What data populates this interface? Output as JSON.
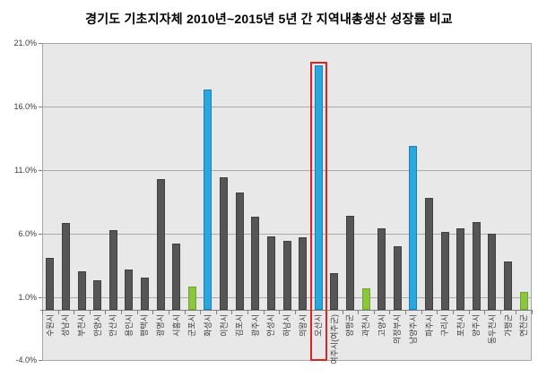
{
  "chart_data": {
    "type": "bar",
    "title": "경기도 기초지자체 2010년~2015년 5년 간 지역내총생산 성장률 비교",
    "categories": [
      "수원시",
      "성남시",
      "부천시",
      "안양시",
      "안산시",
      "용인시",
      "평택시",
      "광명시",
      "시흥시",
      "군포시",
      "화성시",
      "이천시",
      "김포시",
      "광주시",
      "안성시",
      "하남시",
      "의왕시",
      "오산시",
      "여주시(여주군)",
      "양평군",
      "과천시",
      "고양시",
      "의정부시",
      "남양주시",
      "파주시",
      "구리시",
      "포천시",
      "양주시",
      "동두천시",
      "가평군",
      "연천군"
    ],
    "values": [
      4.1,
      6.8,
      3.0,
      2.3,
      6.3,
      3.2,
      2.5,
      10.3,
      5.2,
      1.8,
      17.3,
      10.4,
      9.2,
      7.3,
      5.8,
      5.4,
      5.7,
      19.2,
      2.9,
      7.4,
      1.7,
      6.4,
      5.0,
      12.9,
      8.8,
      6.1,
      6.4,
      6.9,
      6.0,
      3.8,
      1.4
    ],
    "color_keys": [
      "gray",
      "gray",
      "gray",
      "gray",
      "gray",
      "gray",
      "gray",
      "gray",
      "gray",
      "green",
      "blue",
      "gray",
      "gray",
      "gray",
      "gray",
      "gray",
      "gray",
      "blue",
      "gray",
      "gray",
      "green",
      "gray",
      "gray",
      "blue",
      "gray",
      "gray",
      "gray",
      "gray",
      "gray",
      "gray",
      "green"
    ],
    "palette": {
      "gray": {
        "fill": "#565656",
        "border": "#3F3F3F"
      },
      "blue": {
        "fill": "#29A8DF",
        "border": "#1E7FB8"
      },
      "green": {
        "fill": "#8CC63E",
        "border": "#6FA32E"
      }
    },
    "ylabel": "",
    "xlabel": "",
    "unit": "%",
    "ylim": [
      -4,
      21
    ],
    "ytick_labels": [
      "21.0%",
      "16.0%",
      "11.0%",
      "6.0%",
      "1.0%",
      "-4.0%"
    ],
    "ytick_values": [
      21,
      16,
      11,
      6,
      1,
      -4
    ],
    "baseline_value": 0,
    "grid": true,
    "legend": "none",
    "highlight": {
      "category": "오산시",
      "style": "red-box",
      "box_color": "#DE2420"
    }
  },
  "colors": {
    "plot_background": "#E8E8E8",
    "gridline": "#ABABAB",
    "axis": "#7F7F7F",
    "text": "#3A3A3A",
    "highlight_red": "#DE2420"
  }
}
